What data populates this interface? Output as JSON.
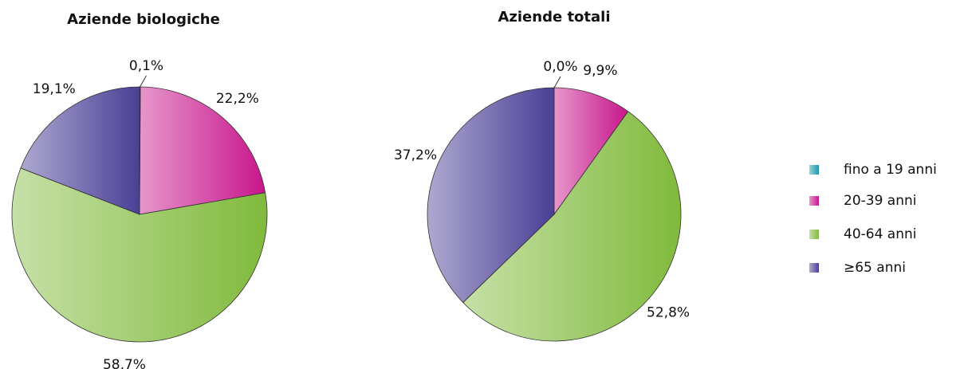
{
  "legend": {
    "entries": [
      "fino a 19 anni",
      "20-39 anni",
      "40-64 anni",
      "≥65 anni"
    ],
    "colors": [
      "#1a9aa8",
      "#c8168c",
      "#80ba3c",
      "#4a3f96"
    ]
  },
  "chart_data": [
    {
      "type": "pie",
      "title": "Aziende biologiche",
      "values": [
        0.1,
        22.2,
        58.7,
        19.1
      ],
      "value_labels": [
        "0,1%",
        "22,2%",
        "58,7%",
        "19,1%"
      ]
    },
    {
      "type": "pie",
      "title": "Aziende totali",
      "values": [
        0.0,
        9.9,
        52.8,
        37.2
      ],
      "value_labels": [
        "0,0%",
        "9,9%",
        "52,8%",
        "37,2%"
      ]
    }
  ]
}
